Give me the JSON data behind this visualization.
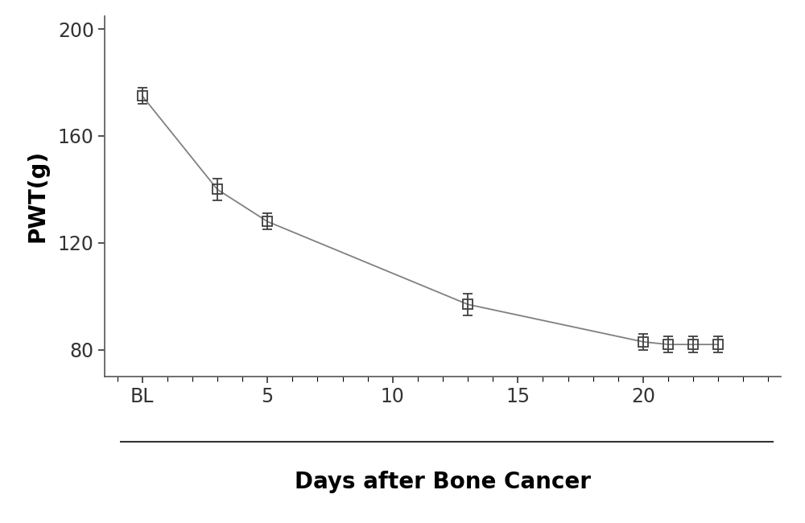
{
  "x_positions": [
    0,
    3,
    5,
    13,
    20,
    21,
    22,
    23
  ],
  "y_values": [
    175,
    140,
    128,
    97,
    83,
    82,
    82,
    82
  ],
  "y_errors": [
    3,
    4,
    3,
    4,
    3,
    3,
    3,
    3
  ],
  "x_tick_positions": [
    0,
    5,
    10,
    15,
    20
  ],
  "x_tick_labels": [
    "BL",
    "5",
    "10",
    "15",
    "20"
  ],
  "ylabel": "PWT(g)",
  "xlabel": "Days after Bone Cancer",
  "ylim": [
    70,
    205
  ],
  "xlim": [
    -1.5,
    25.5
  ],
  "yticks": [
    80,
    120,
    160,
    200
  ],
  "line_color": "#808080",
  "marker_edgecolor": "#404040",
  "marker_size": 9,
  "marker_linewidth": 1.3,
  "line_width": 1.3,
  "xlabel_fontsize": 20,
  "ylabel_fontsize": 20,
  "tick_fontsize": 17,
  "background_color": "#ffffff"
}
